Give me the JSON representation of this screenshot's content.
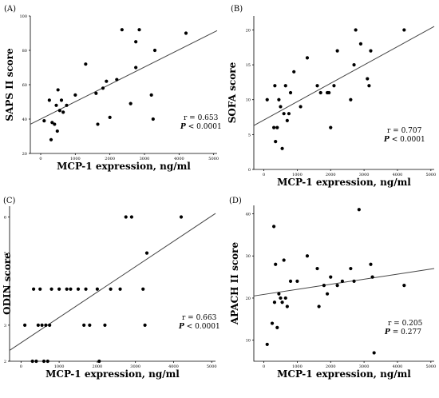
{
  "chart_data": [
    {
      "type": "scatter",
      "panel_label": "(A)",
      "xlabel": "MCP-1 expression, ng/ml",
      "ylabel": "SAPS II score",
      "xlim": [
        -300,
        5100
      ],
      "ylim": [
        20,
        100
      ],
      "xticks": [
        "0",
        "1000",
        "2000",
        "3000",
        "4000",
        "5000"
      ],
      "yticks": [
        "20",
        "40",
        "60",
        "80",
        "100"
      ],
      "yticks_values": [
        20,
        40,
        60,
        80,
        100
      ],
      "stat_r": "r = 0.653",
      "stat_p_label": "P",
      "stat_p_value": "< 0.0001",
      "fit": [
        [
          -300,
          37
        ],
        [
          5100,
          91.5
        ]
      ],
      "points": [
        [
          100,
          39
        ],
        [
          250,
          51
        ],
        [
          300,
          28
        ],
        [
          330,
          38
        ],
        [
          400,
          37
        ],
        [
          450,
          48
        ],
        [
          480,
          33
        ],
        [
          500,
          57
        ],
        [
          550,
          45
        ],
        [
          600,
          51
        ],
        [
          650,
          44
        ],
        [
          750,
          48
        ],
        [
          1000,
          54
        ],
        [
          1300,
          72
        ],
        [
          1600,
          55
        ],
        [
          1650,
          37
        ],
        [
          1800,
          58
        ],
        [
          1900,
          62
        ],
        [
          2000,
          41
        ],
        [
          2200,
          63
        ],
        [
          2350,
          92
        ],
        [
          2600,
          49
        ],
        [
          2750,
          70
        ],
        [
          2850,
          92
        ],
        [
          2750,
          85
        ],
        [
          3200,
          54
        ],
        [
          3250,
          40
        ],
        [
          3300,
          80
        ],
        [
          4200,
          90
        ]
      ]
    },
    {
      "type": "scatter",
      "panel_label": "(B)",
      "xlabel": "MCP-1 expression, ng/ml",
      "ylabel": "SOFA score",
      "xlim": [
        -300,
        5100
      ],
      "ylim": [
        0,
        22
      ],
      "xticks": [
        "0",
        "1000",
        "2000",
        "3000",
        "4000",
        "5000"
      ],
      "yticks": [
        "0",
        "5",
        "10",
        "15",
        "20"
      ],
      "yticks_values": [
        0,
        5,
        10,
        15,
        20
      ],
      "stat_r": "r = 0.707",
      "stat_p_label": "P",
      "stat_p_value": "< 0.0001",
      "fit": [
        [
          -300,
          6.3
        ],
        [
          5100,
          20.5
        ]
      ],
      "points": [
        [
          100,
          10
        ],
        [
          300,
          6
        ],
        [
          330,
          12
        ],
        [
          350,
          4
        ],
        [
          400,
          6
        ],
        [
          450,
          10
        ],
        [
          500,
          9
        ],
        [
          550,
          3
        ],
        [
          600,
          8
        ],
        [
          650,
          12
        ],
        [
          700,
          7
        ],
        [
          750,
          8
        ],
        [
          800,
          11
        ],
        [
          900,
          14
        ],
        [
          1100,
          9
        ],
        [
          1300,
          16
        ],
        [
          1600,
          12
        ],
        [
          1700,
          11
        ],
        [
          1900,
          11
        ],
        [
          1950,
          11
        ],
        [
          2000,
          6
        ],
        [
          2100,
          12
        ],
        [
          2200,
          17
        ],
        [
          2600,
          10
        ],
        [
          2700,
          15
        ],
        [
          2750,
          20
        ],
        [
          2900,
          18
        ],
        [
          3100,
          13
        ],
        [
          3150,
          12
        ],
        [
          3200,
          17
        ],
        [
          4200,
          20
        ]
      ]
    },
    {
      "type": "scatter",
      "panel_label": "(C)",
      "xlabel": "MCP-1 expression, ng/ml",
      "ylabel": "ODIN score",
      "xlim": [
        -300,
        5100
      ],
      "ylim": [
        2,
        6.3
      ],
      "xticks": [
        "0",
        "1000",
        "2000",
        "3000",
        "4000",
        "5000"
      ],
      "yticks": [
        "2",
        "3",
        "4",
        "5",
        "6"
      ],
      "yticks_values": [
        2,
        3,
        4,
        5,
        6
      ],
      "stat_r": "r = 0.663",
      "stat_p_label": "P",
      "stat_p_value": "< 0.0001",
      "fit": [
        [
          -300,
          2.3
        ],
        [
          5100,
          6.1
        ]
      ],
      "points": [
        [
          100,
          3
        ],
        [
          300,
          2
        ],
        [
          330,
          4
        ],
        [
          400,
          2
        ],
        [
          450,
          3
        ],
        [
          500,
          4
        ],
        [
          550,
          3
        ],
        [
          600,
          2
        ],
        [
          650,
          3
        ],
        [
          700,
          2
        ],
        [
          750,
          3
        ],
        [
          800,
          4
        ],
        [
          1000,
          4
        ],
        [
          1200,
          4
        ],
        [
          1300,
          4
        ],
        [
          1500,
          4
        ],
        [
          1650,
          3
        ],
        [
          1700,
          4
        ],
        [
          1800,
          3
        ],
        [
          2000,
          4
        ],
        [
          2050,
          2
        ],
        [
          2200,
          3
        ],
        [
          2350,
          4
        ],
        [
          2600,
          4
        ],
        [
          2750,
          6
        ],
        [
          2900,
          6
        ],
        [
          3200,
          4
        ],
        [
          3250,
          3
        ],
        [
          3300,
          5
        ],
        [
          4200,
          6
        ]
      ]
    },
    {
      "type": "scatter",
      "panel_label": "(D)",
      "xlabel": "MCP-1 expression, ng/ml",
      "ylabel": "APACH II score",
      "xlim": [
        -300,
        5100
      ],
      "ylim": [
        5,
        42
      ],
      "xticks": [
        "0",
        "1000",
        "2000",
        "3000",
        "4000",
        "5000"
      ],
      "yticks": [
        "10",
        "20",
        "30",
        "40"
      ],
      "yticks_values": [
        10,
        20,
        30,
        40
      ],
      "stat_r": "r = 0.205",
      "stat_p_label": "P",
      "stat_p_value": "= 0.277",
      "fit": [
        [
          -300,
          20.5
        ],
        [
          5100,
          27
        ]
      ],
      "points": [
        [
          100,
          9
        ],
        [
          250,
          14
        ],
        [
          300,
          37
        ],
        [
          320,
          19
        ],
        [
          350,
          28
        ],
        [
          400,
          13
        ],
        [
          450,
          21
        ],
        [
          500,
          20
        ],
        [
          550,
          19
        ],
        [
          600,
          29
        ],
        [
          650,
          20
        ],
        [
          700,
          18
        ],
        [
          800,
          24
        ],
        [
          1000,
          24
        ],
        [
          1300,
          30
        ],
        [
          1600,
          27
        ],
        [
          1650,
          18
        ],
        [
          1800,
          23
        ],
        [
          1900,
          21
        ],
        [
          2000,
          25
        ],
        [
          2200,
          23
        ],
        [
          2350,
          24
        ],
        [
          2600,
          27
        ],
        [
          2700,
          24
        ],
        [
          2850,
          41
        ],
        [
          3200,
          28
        ],
        [
          3250,
          25
        ],
        [
          3300,
          7
        ],
        [
          4200,
          23
        ]
      ]
    }
  ]
}
